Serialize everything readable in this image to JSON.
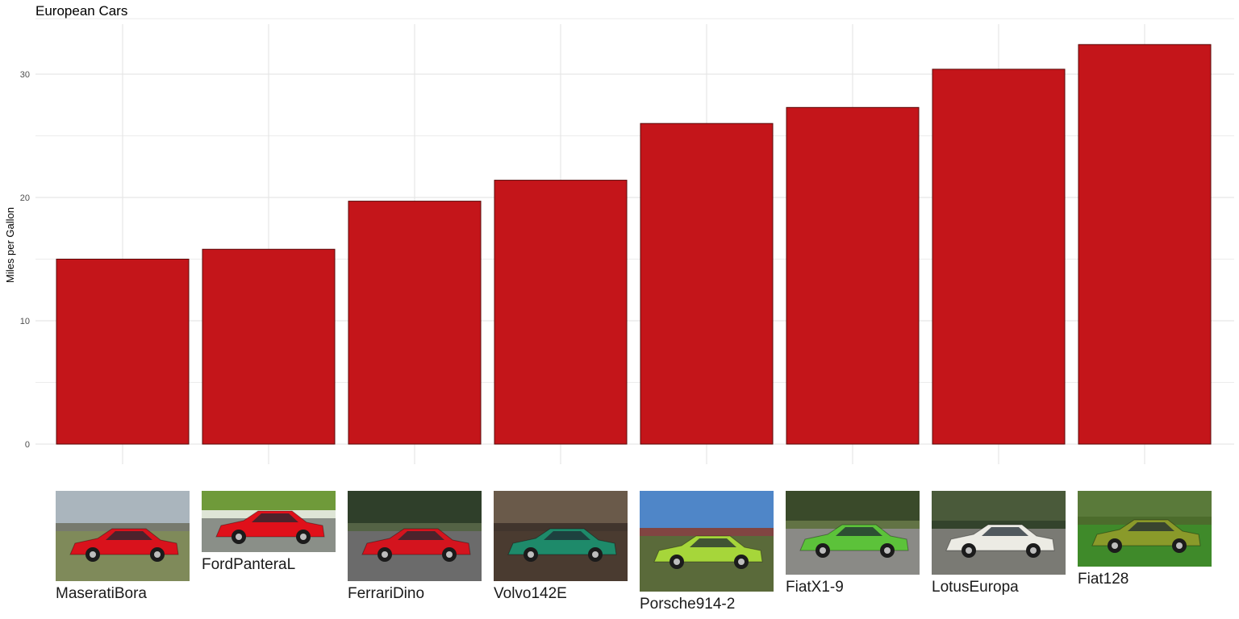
{
  "chart_data": {
    "type": "bar",
    "title": "European Cars",
    "xlabel": "",
    "ylabel": "Miles per Gallon",
    "categories": [
      "MaseratiBora",
      "FordPanteraL",
      "FerrariDino",
      "Volvo142E",
      "Porsche914-2",
      "FiatX1-9",
      "LotusEuropa",
      "Fiat128"
    ],
    "values": [
      15.0,
      15.8,
      19.7,
      21.4,
      26.0,
      27.3,
      30.4,
      32.4
    ],
    "ylim": [
      0,
      34
    ],
    "yticks": [
      0,
      10,
      20,
      30
    ],
    "grid": true,
    "bar_color": "#c4151a",
    "bar_edge_color": "#5a0a0a",
    "grid_color": "#e6e6e6"
  },
  "thumbnails": [
    {
      "car": "MaseratiBora",
      "sky": "#aab5bd",
      "ground": "#7f8a5a",
      "body": "#d9121c",
      "bg_detail": "#6f7060"
    },
    {
      "car": "FordPanteraL",
      "sky": "#6f9a3a",
      "ground": "#8a8f88",
      "body": "#e0101a",
      "bg_detail": "#f2f2f2"
    },
    {
      "car": "FerrariDino",
      "sky": "#2f3f2a",
      "ground": "#6b6b6b",
      "body": "#d4141e",
      "bg_detail": "#5b6a4a"
    },
    {
      "car": "Volvo142E",
      "sky": "#6a5a4a",
      "ground": "#4a3b30",
      "body": "#1e8a6a",
      "bg_detail": "#3a2f28"
    },
    {
      "car": "Porsche914-2",
      "sky": "#4f86c8",
      "ground": "#5a6a3a",
      "body": "#a6d63a",
      "bg_detail": "#8a3a2a"
    },
    {
      "car": "FiatX1-9",
      "sky": "#3a4a2a",
      "ground": "#8a8a86",
      "body": "#5cc23a",
      "bg_detail": "#6a7a4a"
    },
    {
      "car": "LotusEuropa",
      "sky": "#4a5a3a",
      "ground": "#7a7a74",
      "body": "#ecebe4",
      "bg_detail": "#2f3f2a"
    },
    {
      "car": "Fiat128",
      "sky": "#5a7a3a",
      "ground": "#3f8a2a",
      "body": "#8a9a2a",
      "bg_detail": "#4a6a2a"
    }
  ]
}
